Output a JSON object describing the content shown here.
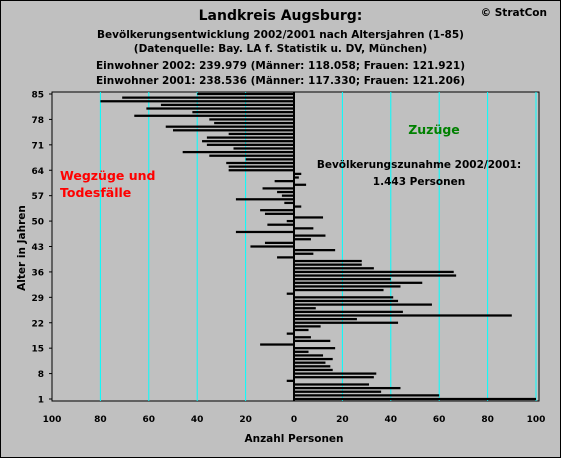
{
  "header": {
    "title": "Landkreis Augsburg:",
    "subtitle_1": "Bevölkerungsentwicklung 2002/2001 nach Altersjahren (1-85)",
    "subtitle_2": "(Datenquelle: Bay. LA f. Statistik u. DV, München)",
    "subtitle_3": "Einwohner 2002: 239.979  (Männer: 118.058; Frauen: 121.921)",
    "subtitle_4": "Einwohner 2001: 238.536  (Männer: 117.330; Frauen: 121.206)",
    "copyright": "© StratCon"
  },
  "colors": {
    "background": "#c0c0c0",
    "bar": "#000000",
    "gridline": "#00ffff",
    "annotation_left": "#ff0000",
    "annotation_right": "#008000"
  },
  "chart_data": {
    "type": "bar",
    "orientation": "horizontal",
    "title": "Landkreis Augsburg:",
    "xlabel": "Anzahl Personen",
    "ylabel": "Alter in Jahren",
    "xlim": [
      -100,
      100
    ],
    "ylim": [
      1,
      85
    ],
    "x_ticks": [
      "100",
      "80",
      "60",
      "40",
      "20",
      "0",
      "20",
      "40",
      "60",
      "80",
      "100"
    ],
    "y_ticks": [
      "1",
      "8",
      "15",
      "22",
      "29",
      "36",
      "43",
      "50",
      "57",
      "64",
      "71",
      "78",
      "85"
    ],
    "grid": "vertical",
    "annotations": {
      "left": [
        "Wegzüge und",
        "Todesfälle"
      ],
      "right": "Zuzüge",
      "center": [
        "Bevölkerungszunahme 2002/2001:",
        "1.443 Personen"
      ]
    },
    "ages": [
      1,
      2,
      3,
      4,
      5,
      6,
      7,
      8,
      9,
      10,
      11,
      12,
      13,
      14,
      15,
      16,
      17,
      18,
      19,
      20,
      21,
      22,
      23,
      24,
      25,
      26,
      27,
      28,
      29,
      30,
      31,
      32,
      33,
      34,
      35,
      36,
      37,
      38,
      39,
      40,
      41,
      42,
      43,
      44,
      45,
      46,
      47,
      48,
      49,
      50,
      51,
      52,
      53,
      54,
      55,
      56,
      57,
      58,
      59,
      60,
      61,
      62,
      63,
      64,
      65,
      66,
      67,
      68,
      69,
      70,
      71,
      72,
      73,
      74,
      75,
      76,
      77,
      78,
      79,
      80,
      81,
      82,
      83,
      84,
      85
    ],
    "values": [
      100,
      60,
      36,
      44,
      31,
      -3,
      33,
      34,
      16,
      15,
      13,
      16,
      12,
      6,
      17,
      -14,
      15,
      7,
      -3,
      6,
      11,
      43,
      26,
      90,
      45,
      9,
      57,
      43,
      41,
      -3,
      37,
      44,
      53,
      40,
      67,
      66,
      33,
      28,
      28,
      -7,
      8,
      17,
      -18,
      -12,
      7,
      13,
      -24,
      8,
      -11,
      -3,
      12,
      -12,
      -14,
      3,
      -4,
      -24,
      -5,
      -7,
      -13,
      5,
      -8,
      2,
      3,
      -27,
      -27,
      -28,
      -20,
      -35,
      -46,
      -25,
      -36,
      -38,
      -36,
      -27,
      -50,
      -53,
      -33,
      -35,
      -66,
      -42,
      -61,
      -55,
      -80,
      -71,
      -40
    ]
  }
}
